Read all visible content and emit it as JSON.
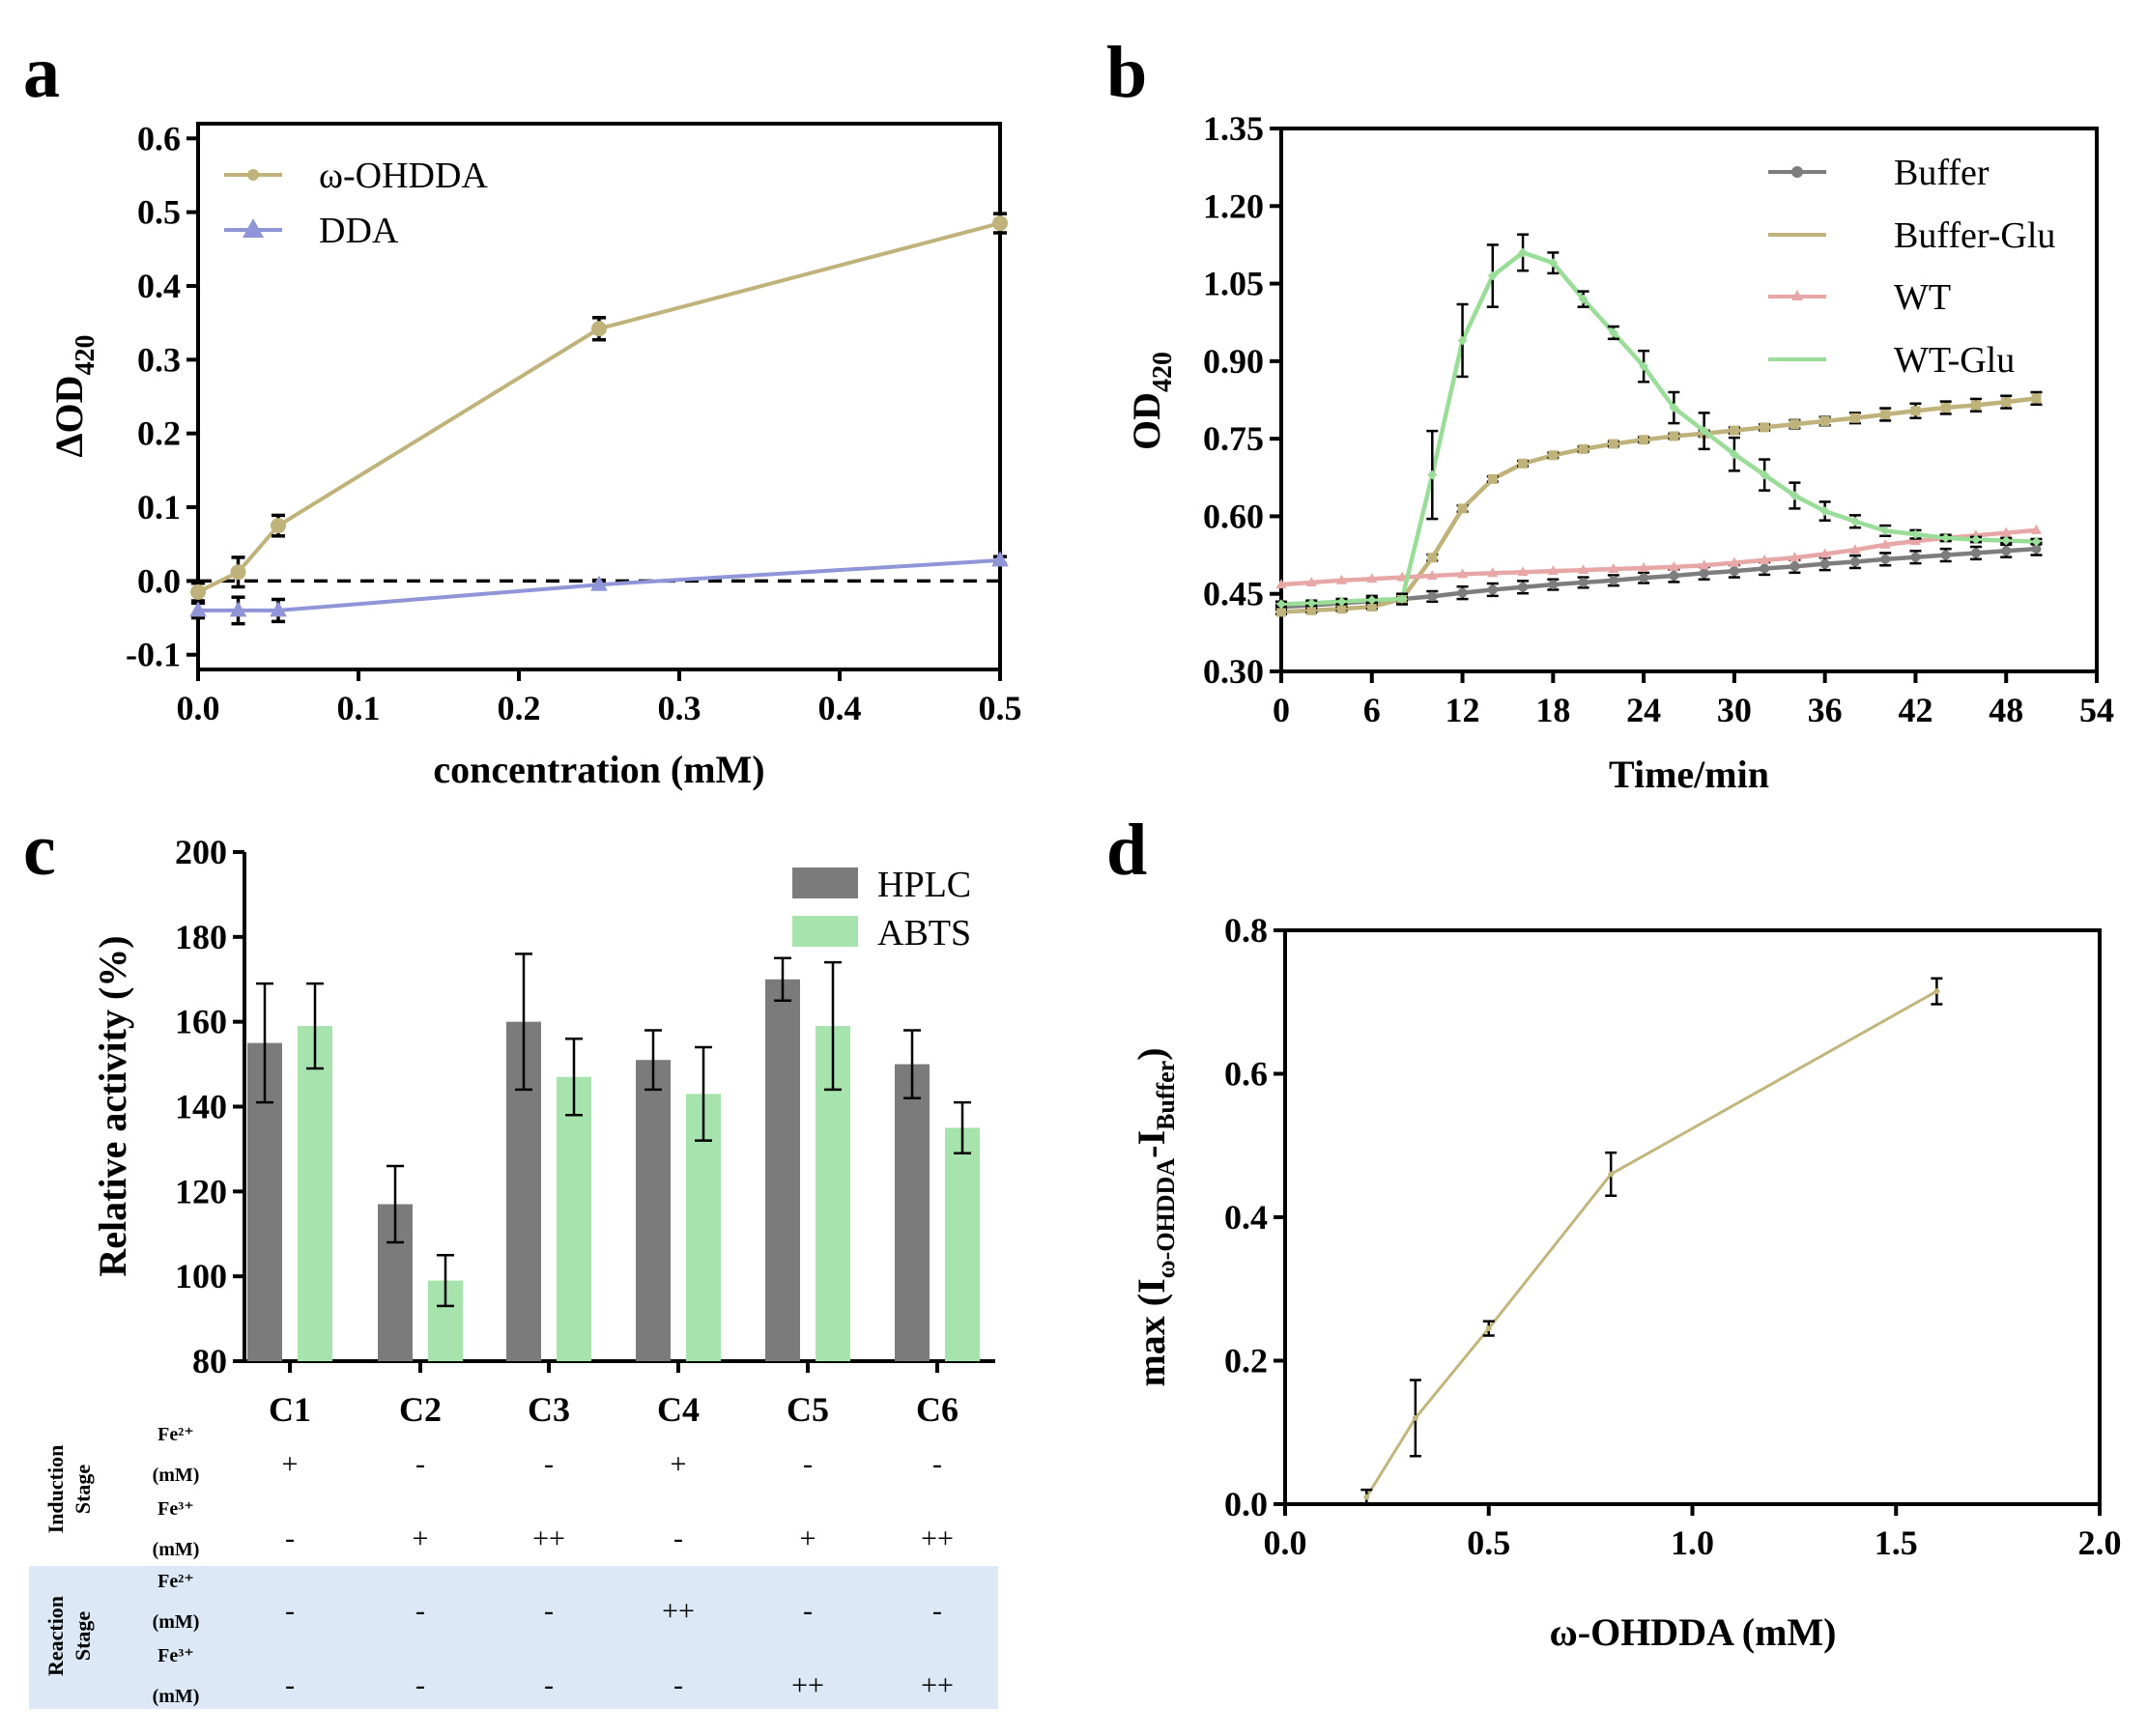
{
  "panel_labels": {
    "a": "a",
    "b": "b",
    "c": "c",
    "d": "d"
  },
  "chart_data": [
    {
      "panel": "a",
      "type": "line",
      "xlabel": "concentration (mM)",
      "ylabel_main": "ΔOD",
      "ylabel_sub": "420",
      "xlim": [
        0,
        0.5
      ],
      "ylim": [
        -0.12,
        0.62
      ],
      "xticks": [
        0.0,
        0.1,
        0.2,
        0.3,
        0.4,
        0.5
      ],
      "xtick_labels": [
        "0.0",
        "0.1",
        "0.2",
        "0.3",
        "0.4",
        "0.5"
      ],
      "yticks": [
        -0.1,
        0.0,
        0.1,
        0.2,
        0.3,
        0.4,
        0.5,
        0.6
      ],
      "ytick_labels": [
        "-0.1",
        "0.0",
        "0.1",
        "0.2",
        "0.3",
        "0.4",
        "0.5",
        "0.6"
      ],
      "reference_line_y": 0.0,
      "series": [
        {
          "name": "ω-OHDDA",
          "color": "#bfb27a",
          "marker": "circle",
          "x": [
            0.0,
            0.025,
            0.05,
            0.25,
            0.5
          ],
          "y": [
            -0.015,
            0.012,
            0.075,
            0.342,
            0.485
          ],
          "err": [
            0.012,
            0.02,
            0.014,
            0.015,
            0.013
          ]
        },
        {
          "name": "DDA",
          "color": "#8f95d6",
          "marker": "triangle",
          "x": [
            0.0,
            0.025,
            0.05,
            0.25,
            0.5
          ],
          "y": [
            -0.04,
            -0.04,
            -0.04,
            -0.005,
            0.028
          ],
          "err": [
            0.01,
            0.018,
            0.015,
            0.006,
            0.005
          ]
        }
      ]
    },
    {
      "panel": "b",
      "type": "line",
      "xlabel": "Time/min",
      "ylabel_main": "OD",
      "ylabel_sub": "420",
      "xlim": [
        0,
        54
      ],
      "ylim": [
        0.3,
        1.35
      ],
      "xticks": [
        0,
        6,
        12,
        18,
        24,
        30,
        36,
        42,
        48,
        54
      ],
      "xtick_labels": [
        "0",
        "6",
        "12",
        "18",
        "24",
        "30",
        "36",
        "42",
        "48",
        "54"
      ],
      "yticks": [
        0.3,
        0.45,
        0.6,
        0.75,
        0.9,
        1.05,
        1.2,
        1.35
      ],
      "ytick_labels": [
        "0.30",
        "0.45",
        "0.60",
        "0.75",
        "0.90",
        "1.05",
        "1.20",
        "1.35"
      ],
      "x": [
        0,
        2,
        4,
        6,
        8,
        10,
        12,
        14,
        16,
        18,
        20,
        22,
        24,
        26,
        28,
        30,
        32,
        34,
        36,
        38,
        40,
        42,
        44,
        46,
        48,
        50
      ],
      "series": [
        {
          "name": "Buffer",
          "color": "#7d7d7d",
          "marker": "circle",
          "y": [
            0.425,
            0.428,
            0.432,
            0.436,
            0.44,
            0.445,
            0.452,
            0.458,
            0.463,
            0.468,
            0.472,
            0.476,
            0.481,
            0.485,
            0.49,
            0.494,
            0.499,
            0.503,
            0.508,
            0.512,
            0.517,
            0.521,
            0.525,
            0.529,
            0.533,
            0.537
          ],
          "err": [
            0.004,
            0.006,
            0.008,
            0.01,
            0.01,
            0.01,
            0.012,
            0.012,
            0.012,
            0.01,
            0.01,
            0.01,
            0.01,
            0.012,
            0.012,
            0.012,
            0.012,
            0.012,
            0.012,
            0.012,
            0.012,
            0.012,
            0.012,
            0.012,
            0.012,
            0.012
          ]
        },
        {
          "name": "Buffer-Glu",
          "color": "#bfb27a",
          "marker": "square",
          "y": [
            0.415,
            0.418,
            0.421,
            0.425,
            0.44,
            0.52,
            0.615,
            0.672,
            0.702,
            0.718,
            0.73,
            0.74,
            0.748,
            0.755,
            0.76,
            0.766,
            0.772,
            0.778,
            0.784,
            0.79,
            0.797,
            0.804,
            0.81,
            0.815,
            0.821,
            0.828
          ],
          "err": [
            0.004,
            0.004,
            0.004,
            0.004,
            0.004,
            0.006,
            0.006,
            0.005,
            0.005,
            0.005,
            0.005,
            0.005,
            0.005,
            0.005,
            0.006,
            0.006,
            0.006,
            0.008,
            0.008,
            0.01,
            0.012,
            0.014,
            0.012,
            0.012,
            0.012,
            0.012
          ]
        },
        {
          "name": "WT",
          "color": "#e8a7a7",
          "marker": "triangle",
          "y": [
            0.468,
            0.472,
            0.476,
            0.479,
            0.482,
            0.485,
            0.488,
            0.49,
            0.492,
            0.494,
            0.496,
            0.498,
            0.5,
            0.502,
            0.505,
            0.51,
            0.515,
            0.52,
            0.527,
            0.535,
            0.545,
            0.552,
            0.558,
            0.563,
            0.568,
            0.573
          ],
          "err": [
            0,
            0,
            0,
            0,
            0,
            0,
            0,
            0,
            0,
            0,
            0,
            0,
            0,
            0,
            0,
            0,
            0,
            0,
            0,
            0,
            0,
            0,
            0,
            0,
            0,
            0
          ]
        },
        {
          "name": "WT-Glu",
          "color": "#99dd99",
          "marker": "diamond",
          "y": [
            0.43,
            0.432,
            0.435,
            0.438,
            0.44,
            0.68,
            0.94,
            1.065,
            1.11,
            1.09,
            1.02,
            0.955,
            0.89,
            0.81,
            0.765,
            0.72,
            0.68,
            0.64,
            0.61,
            0.59,
            0.572,
            0.565,
            0.558,
            0.555,
            0.553,
            0.551
          ],
          "err": [
            0.005,
            0.005,
            0.005,
            0.005,
            0.01,
            0.085,
            0.07,
            0.06,
            0.035,
            0.02,
            0.015,
            0.012,
            0.03,
            0.03,
            0.035,
            0.032,
            0.03,
            0.025,
            0.018,
            0.012,
            0.01,
            0.008,
            0.006,
            0.005,
            0.005,
            0.005
          ]
        }
      ]
    },
    {
      "panel": "c",
      "type": "bar",
      "ylabel": "Relative activity (%)",
      "ylim": [
        80,
        200
      ],
      "yticks": [
        80,
        100,
        120,
        140,
        160,
        180,
        200
      ],
      "ytick_labels": [
        "80",
        "100",
        "120",
        "140",
        "160",
        "180",
        "200"
      ],
      "categories": [
        "C1",
        "C2",
        "C3",
        "C4",
        "C5",
        "C6"
      ],
      "series": [
        {
          "name": "HPLC",
          "color": "#7b7b7b",
          "values": [
            155,
            117,
            160,
            151,
            170,
            150
          ],
          "err": [
            14,
            9,
            16,
            7,
            5,
            8
          ]
        },
        {
          "name": "ABTS",
          "color": "#a7e3ad",
          "values": [
            159,
            99,
            147,
            143,
            159,
            135
          ],
          "err": [
            10,
            6,
            9,
            11,
            15,
            6
          ]
        }
      ]
    },
    {
      "panel": "d",
      "type": "line",
      "xlabel": "ω-OHDDA (mM)",
      "ylabel_prefix": "max (I",
      "ylabel_sub1": "ω-OHDDA",
      "ylabel_mid": "-I",
      "ylabel_sub2": "Buffer",
      "ylabel_suffix": ")",
      "xlim": [
        0,
        2.0
      ],
      "ylim": [
        0,
        0.8
      ],
      "xticks": [
        0.0,
        0.5,
        1.0,
        1.5,
        2.0
      ],
      "xtick_labels": [
        "0.0",
        "0.5",
        "1.0",
        "1.5",
        "2.0"
      ],
      "yticks": [
        0.0,
        0.2,
        0.4,
        0.6,
        0.8
      ],
      "ytick_labels": [
        "0.0",
        "0.2",
        "0.4",
        "0.6",
        "0.8"
      ],
      "series": [
        {
          "name": "ω-OHDDA",
          "color": "#c2b67f",
          "x": [
            0.2,
            0.32,
            0.5,
            0.8,
            1.6
          ],
          "y": [
            0.01,
            0.12,
            0.245,
            0.46,
            0.715
          ],
          "err": [
            0.01,
            0.053,
            0.01,
            0.03,
            0.018
          ]
        }
      ]
    }
  ],
  "condition_table": {
    "stages": [
      {
        "label": "Induction Stage",
        "highlight": false,
        "rows": [
          {
            "ion": "Fe²⁺",
            "unit": "(mM)",
            "values": [
              "+",
              "-",
              "-",
              "+",
              "-",
              "-"
            ]
          },
          {
            "ion": "Fe³⁺",
            "unit": "(mM)",
            "values": [
              "-",
              "+",
              "++",
              "-",
              "+",
              "++"
            ]
          }
        ]
      },
      {
        "label": "Reaction Stage",
        "highlight": true,
        "rows": [
          {
            "ion": "Fe²⁺",
            "unit": "(mM)",
            "values": [
              "-",
              "-",
              "-",
              "++",
              "-",
              "-"
            ]
          },
          {
            "ion": "Fe³⁺",
            "unit": "(mM)",
            "values": [
              "-",
              "-",
              "-",
              "-",
              "++",
              "++"
            ]
          }
        ]
      }
    ],
    "highlight_color": "#dce8f5"
  }
}
